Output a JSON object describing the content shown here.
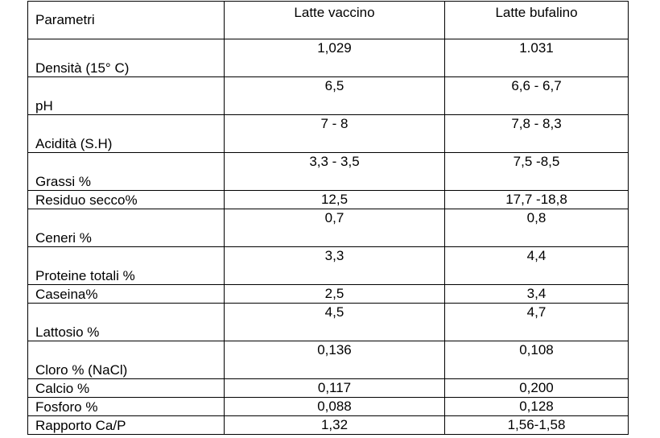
{
  "headers": [
    "Parametri",
    "Latte vaccino",
    "Latte bufalino"
  ],
  "rows": [
    {
      "param": "Densità (15° C)",
      "vaccino": "1,029",
      "bufalino": "1.031"
    },
    {
      "param": "pH",
      "vaccino": "6,5",
      "bufalino": "6,6 - 6,7"
    },
    {
      "param": "Acidità (S.H)",
      "vaccino": "7 - 8",
      "bufalino": "7,8 - 8,3"
    },
    {
      "param": "Grassi %",
      "vaccino": "3,3 - 3,5",
      "bufalino": "7,5 -8,5"
    },
    {
      "param": "Residuo secco%",
      "vaccino": "12,5",
      "bufalino": "17,7 -18,8"
    },
    {
      "param": "Ceneri %",
      "vaccino": "0,7",
      "bufalino": "0,8"
    },
    {
      "param": "Proteine totali %",
      "vaccino": "3,3",
      "bufalino": "4,4"
    },
    {
      "param": "Caseina%",
      "vaccino": "2,5",
      "bufalino": "3,4"
    },
    {
      "param": "Lattosio %",
      "vaccino": "4,5",
      "bufalino": "4,7"
    },
    {
      "param": "Cloro % (NaCl)",
      "vaccino": "0,136",
      "bufalino": "0,108"
    },
    {
      "param": "Calcio %",
      "vaccino": "0,117",
      "bufalino": "0,200"
    },
    {
      "param": "Fosforo %",
      "vaccino": "0,088",
      "bufalino": "0,128"
    },
    {
      "param": "Rapporto Ca/P",
      "vaccino": "1,32",
      "bufalino": "1,56-1,58"
    }
  ]
}
